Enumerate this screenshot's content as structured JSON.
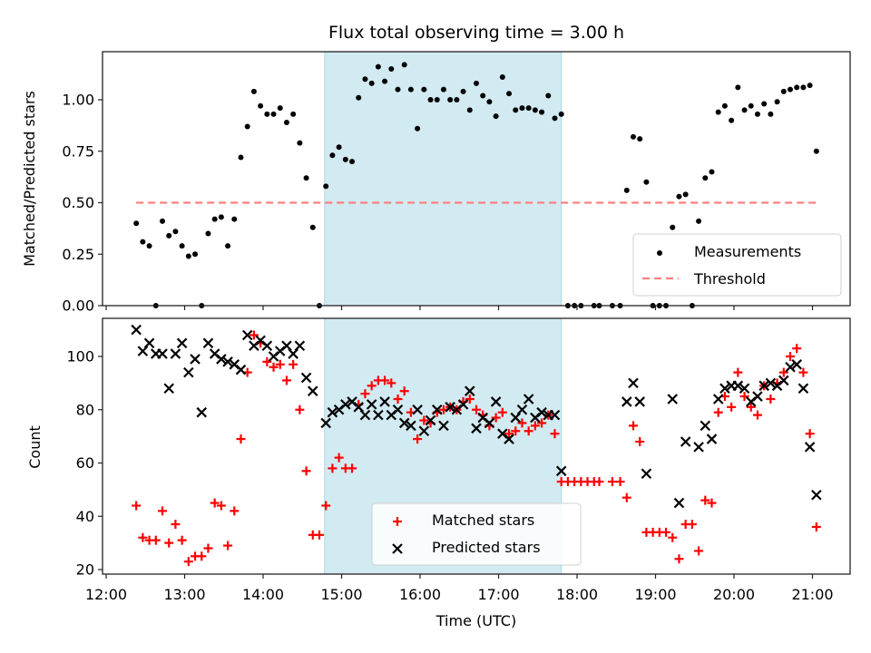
{
  "chart_data": [
    {
      "type": "scatter",
      "panel": "top",
      "title": "Flux total observing time = 3.00 h",
      "xlabel": "",
      "ylabel": "Matched/Predicted stars",
      "ylim": [
        0.0,
        1.25
      ],
      "yticks": [
        "0.00",
        "0.25",
        "0.50",
        "0.75",
        "1.00"
      ],
      "yticks_values": [
        0,
        0.25,
        0.5,
        0.75,
        1.0
      ],
      "xlim": [
        "12:00",
        "21:30"
      ],
      "legend_position": "lower-right",
      "shaded_interval": {
        "start": "14:47",
        "end": "17:48",
        "color": "#add8e6"
      },
      "series": [
        {
          "name": "Measurements",
          "marker": "dot",
          "color": "#000000",
          "x": [
            "12:23",
            "12:28",
            "12:33",
            "12:38",
            "12:43",
            "12:48",
            "12:53",
            "12:58",
            "13:03",
            "13:08",
            "13:13",
            "13:18",
            "13:23",
            "13:28",
            "13:33",
            "13:38",
            "13:43",
            "13:48",
            "13:53",
            "13:58",
            "14:03",
            "14:08",
            "14:13",
            "14:18",
            "14:23",
            "14:28",
            "14:33",
            "14:38",
            "14:43",
            "14:48",
            "14:53",
            "14:58",
            "15:03",
            "15:08",
            "15:13",
            "15:18",
            "15:23",
            "15:28",
            "15:33",
            "15:38",
            "15:43",
            "15:48",
            "15:53",
            "15:58",
            "16:03",
            "16:08",
            "16:13",
            "16:18",
            "16:23",
            "16:28",
            "16:33",
            "16:38",
            "16:43",
            "16:48",
            "16:53",
            "16:58",
            "17:03",
            "17:08",
            "17:13",
            "17:18",
            "17:23",
            "17:28",
            "17:33",
            "17:38",
            "17:43",
            "17:48",
            "17:53",
            "17:58",
            "18:03",
            "18:13",
            "18:17",
            "18:27",
            "18:33",
            "18:38",
            "18:43",
            "18:48",
            "18:53",
            "18:58",
            "19:03",
            "19:08",
            "19:13",
            "19:18",
            "19:23",
            "19:28",
            "19:33",
            "19:38",
            "19:43",
            "19:48",
            "19:53",
            "19:58",
            "20:03",
            "20:08",
            "20:13",
            "20:18",
            "20:23",
            "20:28",
            "20:33",
            "20:38",
            "20:43",
            "20:48",
            "20:53",
            "20:58",
            "21:03"
          ],
          "y": [
            0.4,
            0.31,
            0.29,
            0.0,
            0.41,
            0.34,
            0.36,
            0.29,
            0.24,
            0.25,
            0.0,
            0.35,
            0.42,
            0.43,
            0.29,
            0.42,
            0.72,
            0.87,
            1.04,
            0.97,
            0.93,
            0.93,
            0.96,
            0.89,
            0.93,
            0.79,
            0.62,
            0.38,
            0.0,
            0.58,
            0.73,
            0.77,
            0.71,
            0.7,
            1.01,
            1.1,
            1.08,
            1.16,
            1.09,
            1.15,
            1.05,
            1.17,
            1.05,
            0.86,
            1.05,
            1.0,
            1.0,
            1.05,
            1.0,
            1.0,
            1.04,
            0.95,
            1.08,
            1.02,
            0.99,
            0.92,
            1.11,
            1.03,
            0.95,
            0.96,
            0.96,
            0.95,
            0.94,
            1.02,
            0.91,
            0.93,
            0.0,
            0.0,
            0.0,
            0.0,
            0.0,
            0.0,
            0.0,
            0.56,
            0.82,
            0.81,
            0.6,
            0.0,
            0.0,
            0.0,
            0.38,
            0.53,
            0.54,
            0.0,
            0.41,
            0.62,
            0.65,
            0.94,
            0.97,
            0.9,
            1.06,
            0.95,
            0.97,
            0.93,
            0.98,
            0.93,
            0.99,
            1.04,
            1.05,
            1.06,
            1.06,
            1.07,
            0.75
          ]
        },
        {
          "name": "Threshold",
          "marker": "dashed-line",
          "color": "#ff7f7f",
          "x": [
            "12:23",
            "21:03"
          ],
          "y": [
            0.5,
            0.5
          ]
        }
      ]
    },
    {
      "type": "scatter",
      "panel": "bottom",
      "title": "",
      "xlabel": "Time (UTC)",
      "ylabel": "Count",
      "ylim": [
        18,
        114
      ],
      "yticks": [
        "20",
        "40",
        "60",
        "80",
        "100"
      ],
      "yticks_values": [
        20,
        40,
        60,
        80,
        100
      ],
      "xlim": [
        "12:00",
        "21:30"
      ],
      "xticks": [
        "12:00",
        "13:00",
        "14:00",
        "15:00",
        "16:00",
        "17:00",
        "18:00",
        "19:00",
        "20:00",
        "21:00"
      ],
      "legend_position": "lower-center",
      "shaded_interval": {
        "start": "14:47",
        "end": "17:48",
        "color": "#add8e6"
      },
      "series": [
        {
          "name": "Matched stars",
          "marker": "plus",
          "color": "#ff0000",
          "x": [
            "12:23",
            "12:28",
            "12:33",
            "12:38",
            "12:43",
            "12:48",
            "12:53",
            "12:58",
            "13:03",
            "13:08",
            "13:13",
            "13:18",
            "13:23",
            "13:28",
            "13:33",
            "13:38",
            "13:43",
            "13:48",
            "13:53",
            "13:58",
            "14:03",
            "14:08",
            "14:13",
            "14:18",
            "14:23",
            "14:28",
            "14:33",
            "14:38",
            "14:43",
            "14:48",
            "14:53",
            "14:58",
            "15:03",
            "15:08",
            "15:13",
            "15:18",
            "15:23",
            "15:28",
            "15:33",
            "15:38",
            "15:43",
            "15:48",
            "15:53",
            "15:58",
            "16:03",
            "16:08",
            "16:13",
            "16:18",
            "16:23",
            "16:28",
            "16:33",
            "16:38",
            "16:43",
            "16:48",
            "16:53",
            "16:58",
            "17:03",
            "17:08",
            "17:13",
            "17:18",
            "17:23",
            "17:28",
            "17:33",
            "17:38",
            "17:43",
            "17:48",
            "17:53",
            "17:58",
            "18:03",
            "18:08",
            "18:13",
            "18:17",
            "18:27",
            "18:33",
            "18:38",
            "18:43",
            "18:48",
            "18:53",
            "18:58",
            "19:03",
            "19:08",
            "19:13",
            "19:18",
            "19:23",
            "19:28",
            "19:33",
            "19:38",
            "19:43",
            "19:48",
            "19:53",
            "19:58",
            "20:03",
            "20:08",
            "20:13",
            "20:18",
            "20:23",
            "20:28",
            "20:33",
            "20:38",
            "20:43",
            "20:48",
            "20:53",
            "20:58",
            "21:03"
          ],
          "y": [
            44,
            32,
            31,
            31,
            42,
            30,
            37,
            31,
            23,
            25,
            25,
            28,
            45,
            44,
            29,
            42,
            69,
            94,
            108,
            105,
            98,
            96,
            97,
            91,
            97,
            80,
            57,
            33,
            33,
            44,
            58,
            62,
            58,
            58,
            82,
            86,
            89,
            91,
            91,
            90,
            84,
            87,
            79,
            69,
            76,
            75,
            79,
            80,
            81,
            80,
            83,
            84,
            80,
            78,
            74,
            77,
            79,
            71,
            72,
            75,
            72,
            74,
            75,
            78,
            71,
            53,
            53,
            53,
            53,
            53,
            53,
            53,
            53,
            53,
            47,
            74,
            68,
            34,
            34,
            34,
            34,
            32,
            24,
            37,
            37,
            27,
            46,
            45,
            79,
            85,
            81,
            94,
            85,
            81,
            78,
            89,
            84,
            90,
            94,
            100,
            103,
            94,
            71,
            36
          ]
        },
        {
          "name": "Predicted stars",
          "marker": "x",
          "color": "#000000",
          "x": [
            "12:23",
            "12:28",
            "12:33",
            "12:38",
            "12:43",
            "12:48",
            "12:53",
            "12:58",
            "13:03",
            "13:08",
            "13:13",
            "13:18",
            "13:23",
            "13:28",
            "13:33",
            "13:38",
            "13:43",
            "13:48",
            "13:53",
            "13:58",
            "14:03",
            "14:08",
            "14:13",
            "14:18",
            "14:23",
            "14:28",
            "14:33",
            "14:38",
            "14:48",
            "14:53",
            "14:58",
            "15:03",
            "15:08",
            "15:13",
            "15:18",
            "15:23",
            "15:28",
            "15:33",
            "15:38",
            "15:43",
            "15:48",
            "15:53",
            "15:58",
            "16:03",
            "16:08",
            "16:13",
            "16:18",
            "16:23",
            "16:28",
            "16:33",
            "16:38",
            "16:43",
            "16:48",
            "16:53",
            "16:58",
            "17:03",
            "17:08",
            "17:13",
            "17:18",
            "17:23",
            "17:28",
            "17:33",
            "17:38",
            "17:43",
            "17:48",
            "18:38",
            "18:43",
            "18:48",
            "18:53",
            "19:13",
            "19:18",
            "19:23",
            "19:33",
            "19:38",
            "19:43",
            "19:48",
            "19:53",
            "19:58",
            "20:03",
            "20:08",
            "20:13",
            "20:18",
            "20:23",
            "20:28",
            "20:33",
            "20:38",
            "20:43",
            "20:48",
            "20:53",
            "20:58",
            "21:03"
          ],
          "y": [
            110,
            102,
            105,
            101,
            101,
            88,
            101,
            105,
            94,
            99,
            79,
            105,
            101,
            99,
            98,
            97,
            95,
            108,
            104,
            106,
            104,
            100,
            102,
            104,
            101,
            104,
            92,
            87,
            75,
            79,
            80,
            82,
            83,
            81,
            78,
            82,
            78,
            83,
            78,
            80,
            75,
            74,
            80,
            72,
            76,
            80,
            74,
            81,
            80,
            82,
            87,
            73,
            77,
            75,
            83,
            71,
            69,
            77,
            80,
            84,
            77,
            79,
            78,
            78,
            57,
            83,
            90,
            83,
            56,
            84,
            45,
            68,
            66,
            74,
            69,
            84,
            88,
            89,
            89,
            88,
            83,
            85,
            89,
            90,
            89,
            91,
            96,
            97,
            88,
            66,
            48
          ]
        }
      ]
    }
  ]
}
